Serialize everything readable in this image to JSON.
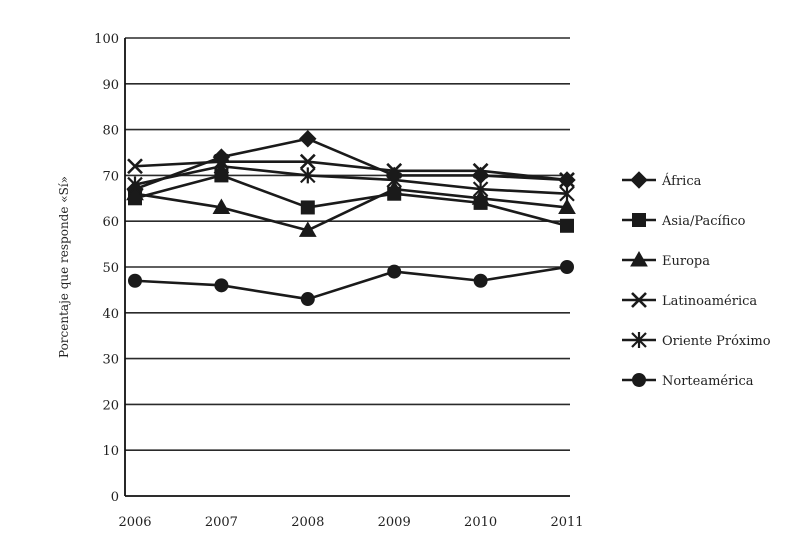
{
  "chart_data": {
    "type": "line",
    "title": "",
    "xlabel": "",
    "ylabel": "Porcentaje que responde «Sí»",
    "ylim": [
      0,
      100
    ],
    "yticks": [
      0,
      10,
      20,
      30,
      40,
      50,
      60,
      70,
      80,
      90,
      100
    ],
    "categories": [
      "2006",
      "2007",
      "2008",
      "2009",
      "2010",
      "2011"
    ],
    "grid": true,
    "legend_position": "right",
    "series": [
      {
        "name": "África",
        "marker": "diamond",
        "values": [
          67,
          74,
          78,
          70,
          70,
          69
        ]
      },
      {
        "name": "Asia/Pacífico",
        "marker": "square",
        "values": [
          65,
          70,
          63,
          66,
          64,
          59
        ]
      },
      {
        "name": "Europa",
        "marker": "triangle",
        "values": [
          66,
          63,
          58,
          67,
          65,
          63
        ]
      },
      {
        "name": "Latinoamérica",
        "marker": "x",
        "values": [
          72,
          73,
          73,
          71,
          71,
          69
        ]
      },
      {
        "name": "Oriente Próximo",
        "marker": "star",
        "values": [
          68,
          72,
          70,
          69,
          67,
          66
        ]
      },
      {
        "name": "Norteamérica",
        "marker": "circle",
        "values": [
          47,
          46,
          43,
          49,
          47,
          50
        ]
      }
    ]
  }
}
